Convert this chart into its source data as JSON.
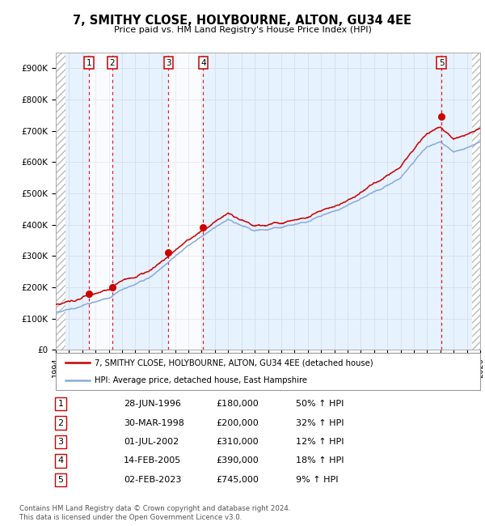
{
  "title": "7, SMITHY CLOSE, HOLYBOURNE, ALTON, GU34 4EE",
  "subtitle": "Price paid vs. HM Land Registry's House Price Index (HPI)",
  "ylim": [
    0,
    950000
  ],
  "yticks": [
    0,
    100000,
    200000,
    300000,
    400000,
    500000,
    600000,
    700000,
    800000,
    900000
  ],
  "ytick_labels": [
    "£0",
    "£100K",
    "£200K",
    "£300K",
    "£400K",
    "£500K",
    "£600K",
    "£700K",
    "£800K",
    "£900K"
  ],
  "xlim_start": 1994.0,
  "xlim_end": 2026.0,
  "hpi_color": "#88aadd",
  "price_color": "#cc0000",
  "sale_marker_color": "#cc0000",
  "sales": [
    {
      "num": 1,
      "date_label": "28-JUN-1996",
      "date_x": 1996.49,
      "price": 180000,
      "pct": "50%",
      "arrow": "↑"
    },
    {
      "num": 2,
      "date_label": "30-MAR-1998",
      "date_x": 1998.25,
      "price": 200000,
      "pct": "32%",
      "arrow": "↑"
    },
    {
      "num": 3,
      "date_label": "01-JUL-2002",
      "date_x": 2002.5,
      "price": 310000,
      "pct": "12%",
      "arrow": "↑"
    },
    {
      "num": 4,
      "date_label": "14-FEB-2005",
      "date_x": 2005.12,
      "price": 390000,
      "pct": "18%",
      "arrow": "↑"
    },
    {
      "num": 5,
      "date_label": "02-FEB-2023",
      "date_x": 2023.09,
      "price": 745000,
      "pct": "9%",
      "arrow": "↑"
    }
  ],
  "legend_line1": "7, SMITHY CLOSE, HOLYBOURNE, ALTON, GU34 4EE (detached house)",
  "legend_line2": "HPI: Average price, detached house, East Hampshire",
  "footer": "Contains HM Land Registry data © Crown copyright and database right 2024.\nThis data is licensed under the Open Government Licence v3.0.",
  "bg_color": "#ffffff",
  "chart_bg": "#f5f8ff",
  "hatch_left_end": 1994.75,
  "hatch_right_start": 2025.42,
  "span_boundaries": [
    1994.75,
    1996.49,
    1998.25,
    2002.5,
    2005.12,
    2023.09,
    2025.42
  ],
  "span_colors": [
    "#ddeeff",
    "#ffffff",
    "#ddeeff",
    "#ffffff",
    "#ddeeff",
    "#ddeeff"
  ]
}
